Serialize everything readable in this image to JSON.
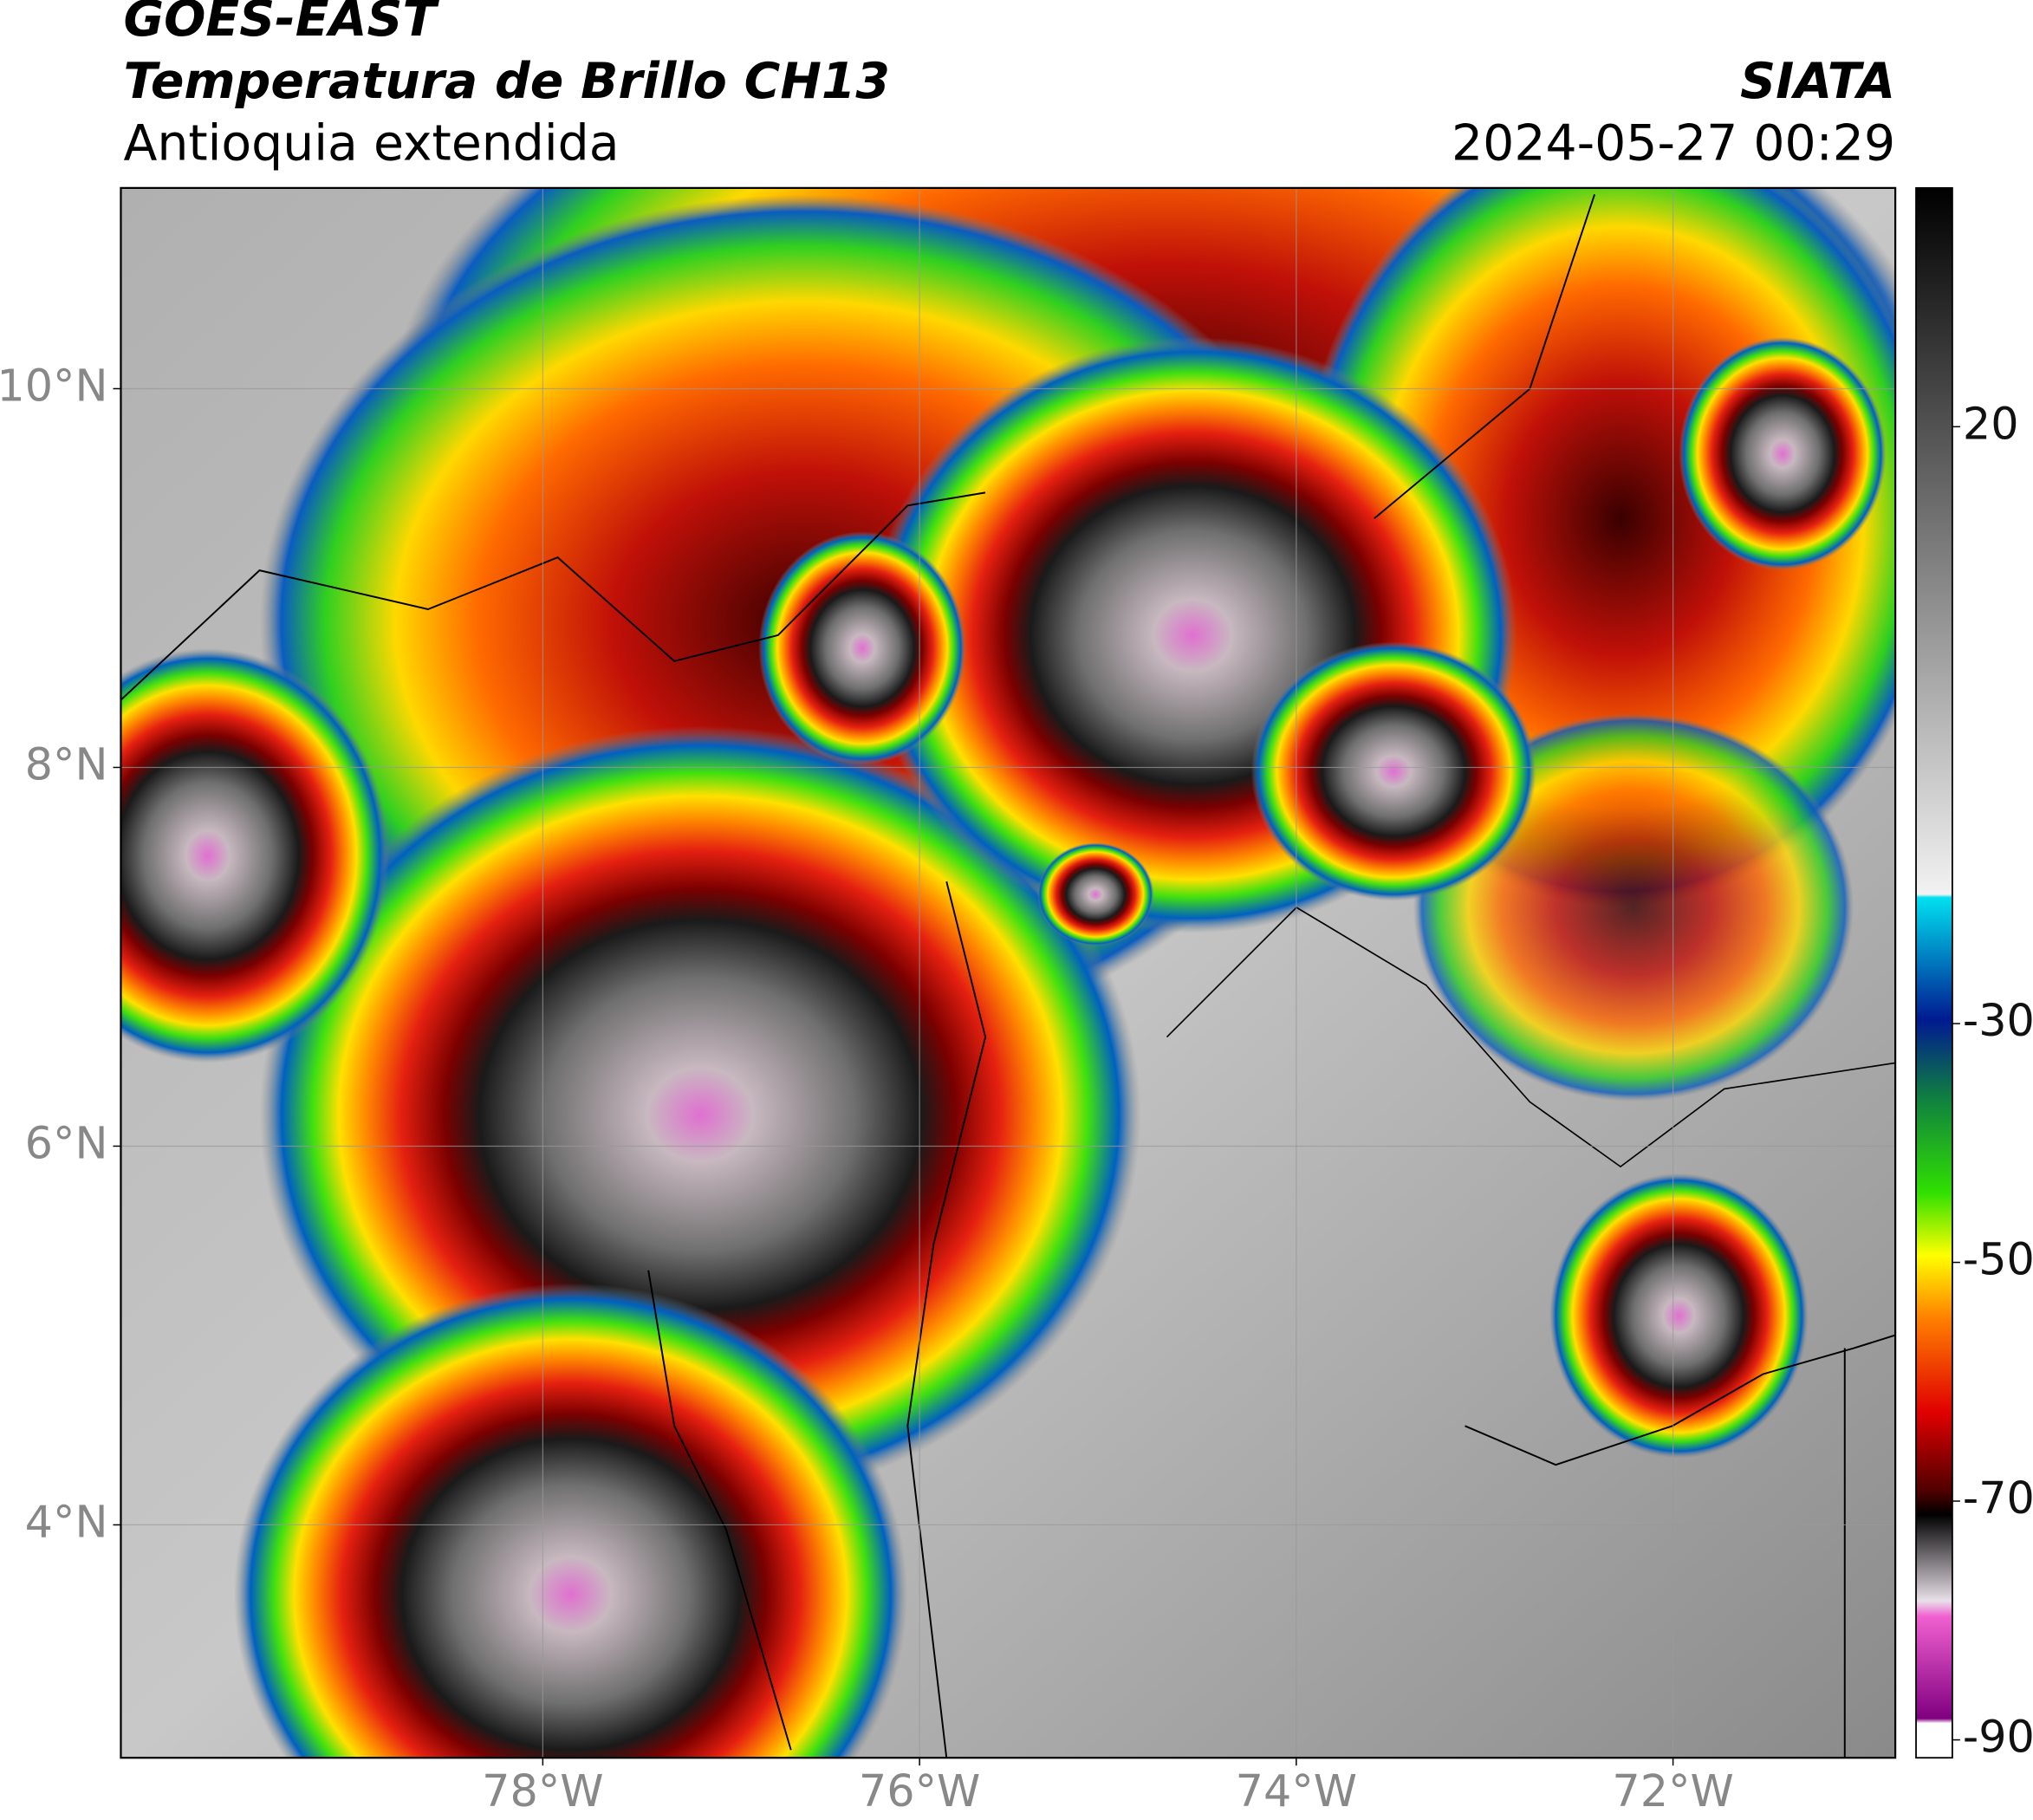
{
  "header": {
    "title": "GOES-EAST",
    "subtitle": "Temperatura de Brillo CH13",
    "region": "Antioquia extendida",
    "source": "SIATA",
    "datetime": "2024-05-27 00:29"
  },
  "map": {
    "lonlim": [
      -80.24,
      -70.82
    ],
    "latlim": [
      2.77,
      11.06
    ],
    "lonticks": [
      {
        "value": -78,
        "label": "78°W"
      },
      {
        "value": -76,
        "label": "76°W"
      },
      {
        "value": -74,
        "label": "74°W"
      },
      {
        "value": -72,
        "label": "72°W"
      }
    ],
    "latticks": [
      {
        "value": 4,
        "label": "4°N"
      },
      {
        "value": 6,
        "label": "6°N"
      },
      {
        "value": 8,
        "label": "8°N"
      },
      {
        "value": 10,
        "label": "10°N"
      }
    ],
    "grid": true
  },
  "colorbar": {
    "lim": [
      -91.5,
      40
    ],
    "ticks": [
      20,
      -30,
      -50,
      -70,
      -90
    ]
  }
}
